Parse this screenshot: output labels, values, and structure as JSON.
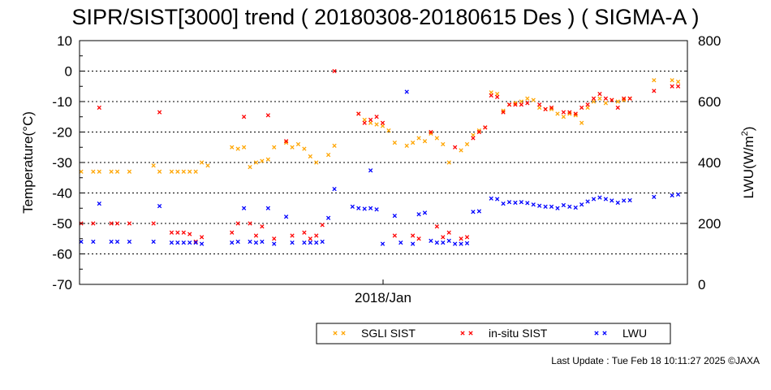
{
  "chart_data": {
    "type": "scatter",
    "title": "SIPR/SIST[3000] trend ( 20180308-20180615 Des ) ( SIGMA-A )",
    "ylabel": "Temperature(°C)",
    "ylabel_right_prefix": "LWU(W/m",
    "ylabel_right_sup": "2",
    "ylabel_right_suffix": ")",
    "xlabel": "2018/Jan",
    "ylim": [
      -70,
      10
    ],
    "y2lim": [
      0,
      800
    ],
    "yticks": [
      10,
      0,
      -10,
      -20,
      -30,
      -40,
      -50,
      -60,
      -70
    ],
    "yticks_right": [
      800,
      600,
      400,
      200,
      0
    ],
    "grid": "horizontal dotted at -60,-50,-40,-30,-20,-10,0",
    "x_index_range": [
      0,
      100
    ],
    "legend": "bottom-center",
    "series": [
      {
        "name": "SGLI SIST",
        "color": "#ffa500",
        "axis": "left",
        "points": [
          [
            0,
            -33
          ],
          [
            2,
            -33
          ],
          [
            3,
            -33
          ],
          [
            5,
            -33
          ],
          [
            6,
            -33
          ],
          [
            8,
            -33
          ],
          [
            12,
            -31
          ],
          [
            13,
            -33
          ],
          [
            15,
            -33
          ],
          [
            16,
            -33
          ],
          [
            17,
            -33
          ],
          [
            18,
            -33
          ],
          [
            19,
            -33
          ],
          [
            20,
            -30
          ],
          [
            21,
            -31
          ],
          [
            25,
            -25
          ],
          [
            26,
            -25.5
          ],
          [
            27,
            -25
          ],
          [
            28,
            -31.5
          ],
          [
            29,
            -30
          ],
          [
            30,
            -29.5
          ],
          [
            31,
            -29
          ],
          [
            32,
            -25
          ],
          [
            34,
            -23.5
          ],
          [
            35,
            -25
          ],
          [
            36,
            -24
          ],
          [
            37,
            -25.5
          ],
          [
            38,
            -28
          ],
          [
            39,
            -30
          ],
          [
            41,
            -27.5
          ],
          [
            42,
            -24.5
          ],
          [
            46,
            -14
          ],
          [
            47,
            -16
          ],
          [
            48,
            -17
          ],
          [
            49,
            -17.5
          ],
          [
            50,
            -18
          ],
          [
            51,
            -19.5
          ],
          [
            52,
            -23.5
          ],
          [
            54,
            -24.5
          ],
          [
            55,
            -23.5
          ],
          [
            56,
            -22
          ],
          [
            57,
            -23
          ],
          [
            58,
            -20.5
          ],
          [
            59,
            -22
          ],
          [
            60,
            -24
          ],
          [
            61,
            -30
          ],
          [
            63,
            -26
          ],
          [
            64,
            -24
          ],
          [
            65,
            -21
          ],
          [
            66,
            -19.5
          ],
          [
            67,
            -18.5
          ],
          [
            68,
            -7
          ],
          [
            69,
            -7.5
          ],
          [
            70,
            -13
          ],
          [
            71,
            -11
          ],
          [
            72,
            -10.5
          ],
          [
            73,
            -10
          ],
          [
            74,
            -9
          ],
          [
            75,
            -9.5
          ],
          [
            76,
            -12
          ],
          [
            77,
            -12.5
          ],
          [
            78,
            -12.5
          ],
          [
            79,
            -14
          ],
          [
            80,
            -15
          ],
          [
            81,
            -14
          ],
          [
            82,
            -14.5
          ],
          [
            83,
            -17
          ],
          [
            84,
            -12
          ],
          [
            85,
            -10
          ],
          [
            86,
            -9
          ],
          [
            87,
            -10.5
          ],
          [
            88,
            -9.5
          ],
          [
            89,
            -10
          ],
          [
            90,
            -9.5
          ],
          [
            91,
            -9
          ],
          [
            95,
            -3
          ],
          [
            98,
            -3
          ],
          [
            99,
            -3.5
          ]
        ]
      },
      {
        "name": "in-situ SIST",
        "color": "#ff0000",
        "axis": "left",
        "points": [
          [
            0,
            -50
          ],
          [
            2,
            -50
          ],
          [
            3,
            -12
          ],
          [
            5,
            -50
          ],
          [
            6,
            -50
          ],
          [
            8,
            -50
          ],
          [
            12,
            -50
          ],
          [
            13,
            -13.5
          ],
          [
            15,
            -53
          ],
          [
            16,
            -53
          ],
          [
            17,
            -53
          ],
          [
            18,
            -53.5
          ],
          [
            19,
            -56
          ],
          [
            20,
            -54.5
          ],
          [
            25,
            -53
          ],
          [
            26,
            -50
          ],
          [
            27,
            -15
          ],
          [
            28,
            -50
          ],
          [
            29,
            -54
          ],
          [
            30,
            -51
          ],
          [
            31,
            -14.5
          ],
          [
            32,
            -55
          ],
          [
            34,
            -23
          ],
          [
            35,
            -54
          ],
          [
            37,
            -53
          ],
          [
            38,
            -55
          ],
          [
            39,
            -54
          ],
          [
            40,
            -50.5
          ],
          [
            42,
            0
          ],
          [
            46,
            -14
          ],
          [
            47,
            -17
          ],
          [
            48,
            -16
          ],
          [
            49,
            -15
          ],
          [
            50,
            -17
          ],
          [
            52,
            -54
          ],
          [
            55,
            -54
          ],
          [
            56,
            -55
          ],
          [
            58,
            -20
          ],
          [
            59,
            -51
          ],
          [
            60,
            -54.5
          ],
          [
            61,
            -53
          ],
          [
            62,
            -25
          ],
          [
            63,
            -55
          ],
          [
            64,
            -54.5
          ],
          [
            65,
            -22
          ],
          [
            66,
            -20
          ],
          [
            67,
            -18.5
          ],
          [
            68,
            -8
          ],
          [
            69,
            -8.5
          ],
          [
            70,
            -13.5
          ],
          [
            71,
            -11
          ],
          [
            72,
            -11
          ],
          [
            73,
            -11
          ],
          [
            74,
            -10.5
          ],
          [
            76,
            -11
          ],
          [
            77,
            -12.5
          ],
          [
            78,
            -12
          ],
          [
            80,
            -13.5
          ],
          [
            81,
            -13.5
          ],
          [
            82,
            -14
          ],
          [
            83,
            -12
          ],
          [
            84,
            -11
          ],
          [
            85,
            -9
          ],
          [
            86,
            -7.5
          ],
          [
            87,
            -9
          ],
          [
            88,
            -9.5
          ],
          [
            89,
            -12
          ],
          [
            90,
            -9
          ],
          [
            91,
            -9
          ],
          [
            95,
            -6.5
          ],
          [
            98,
            -5
          ],
          [
            99,
            -5
          ]
        ]
      },
      {
        "name": "LWU",
        "color": "#0000ff",
        "axis": "right",
        "points": [
          [
            0,
            140
          ],
          [
            2,
            140
          ],
          [
            3,
            265
          ],
          [
            5,
            140
          ],
          [
            6,
            140
          ],
          [
            8,
            140
          ],
          [
            12,
            140
          ],
          [
            13,
            257
          ],
          [
            15,
            137
          ],
          [
            16,
            137
          ],
          [
            17,
            137
          ],
          [
            18,
            137
          ],
          [
            19,
            137
          ],
          [
            20,
            133
          ],
          [
            25,
            137
          ],
          [
            26,
            140
          ],
          [
            27,
            250
          ],
          [
            28,
            140
          ],
          [
            29,
            137
          ],
          [
            30,
            140
          ],
          [
            31,
            250
          ],
          [
            32,
            133
          ],
          [
            34,
            222
          ],
          [
            35,
            137
          ],
          [
            37,
            137
          ],
          [
            38,
            137
          ],
          [
            39,
            137
          ],
          [
            40,
            140
          ],
          [
            41,
            218
          ],
          [
            42,
            313
          ],
          [
            45,
            255
          ],
          [
            46,
            250
          ],
          [
            47,
            248
          ],
          [
            48,
            250
          ],
          [
            49,
            246
          ],
          [
            50,
            133
          ],
          [
            52,
            225
          ],
          [
            53,
            137
          ],
          [
            54,
            632
          ],
          [
            55,
            133
          ],
          [
            56,
            230
          ],
          [
            57,
            235
          ],
          [
            58,
            143
          ],
          [
            59,
            137
          ],
          [
            60,
            137
          ],
          [
            61,
            143
          ],
          [
            62,
            133
          ],
          [
            63,
            133
          ],
          [
            64,
            135
          ],
          [
            65,
            238
          ],
          [
            66,
            240
          ],
          [
            68,
            282
          ],
          [
            69,
            280
          ],
          [
            70,
            265
          ],
          [
            71,
            270
          ],
          [
            72,
            268
          ],
          [
            73,
            270
          ],
          [
            74,
            267
          ],
          [
            75,
            262
          ],
          [
            76,
            258
          ],
          [
            77,
            255
          ],
          [
            78,
            255
          ],
          [
            79,
            250
          ],
          [
            80,
            260
          ],
          [
            81,
            255
          ],
          [
            82,
            252
          ],
          [
            83,
            262
          ],
          [
            84,
            272
          ],
          [
            85,
            280
          ],
          [
            86,
            285
          ],
          [
            87,
            280
          ],
          [
            88,
            275
          ],
          [
            89,
            268
          ],
          [
            90,
            275
          ],
          [
            91,
            276
          ],
          [
            95,
            287
          ],
          [
            98,
            292
          ],
          [
            99,
            295
          ],
          [
            48,
            374
          ]
        ]
      }
    ]
  },
  "footer": {
    "text": "Last Update : Tue Feb 18 10:11:27 2025  ©JAXA"
  }
}
